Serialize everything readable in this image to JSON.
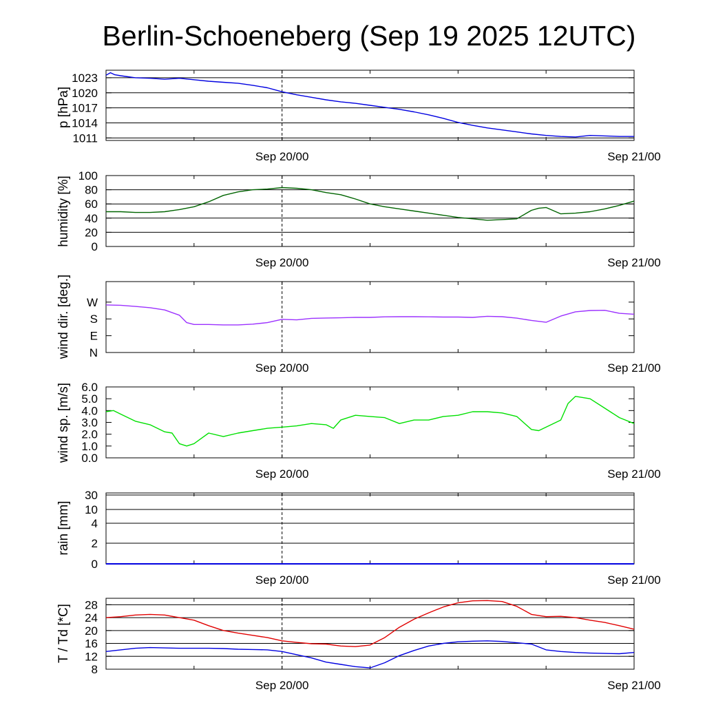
{
  "title": "Berlin-Schoeneberg (Sep 19 2025 12UTC)",
  "x_tick_labels": [
    "Sep 20/00",
    "Sep 21/00"
  ],
  "chart_data": [
    {
      "type": "line",
      "id": "pressure",
      "ylabel": "p [hPa]",
      "ylim": [
        1010.5,
        1024.5
      ],
      "ytick_values": [
        1011,
        1014,
        1017,
        1020,
        1023
      ],
      "ytick_labels": [
        "1011",
        "1014",
        "1017",
        "1020",
        "1023"
      ],
      "x_unit": "hours since Sep 19 12UTC",
      "xlim": [
        0,
        36
      ],
      "color": "#0000e0",
      "series": [
        {
          "x": [
            0,
            0.3,
            0.6,
            1,
            1.5,
            2,
            3,
            4,
            5,
            6,
            7,
            8,
            9,
            10,
            11,
            12,
            13,
            14,
            15,
            16,
            17,
            18,
            19,
            20,
            21,
            22,
            23,
            24,
            25,
            26,
            27,
            28,
            29,
            30,
            31,
            32,
            33,
            34,
            35,
            36
          ],
          "y": [
            1023.5,
            1024.0,
            1023.6,
            1023.4,
            1023.2,
            1023.0,
            1022.9,
            1022.7,
            1022.9,
            1022.6,
            1022.3,
            1022.1,
            1021.9,
            1021.5,
            1021.0,
            1020.2,
            1019.6,
            1019.1,
            1018.6,
            1018.2,
            1017.9,
            1017.5,
            1017.1,
            1016.7,
            1016.2,
            1015.6,
            1014.9,
            1014.1,
            1013.5,
            1013.0,
            1012.6,
            1012.2,
            1011.8,
            1011.5,
            1011.3,
            1011.2,
            1011.5,
            1011.4,
            1011.3,
            1011.3
          ]
        }
      ]
    },
    {
      "type": "line",
      "id": "humidity",
      "ylabel": "humidity [%]",
      "ylim": [
        0,
        100
      ],
      "ytick_values": [
        0,
        20,
        40,
        60,
        80,
        100
      ],
      "ytick_labels": [
        "0",
        "20",
        "40",
        "60",
        "80",
        "100"
      ],
      "xlim": [
        0,
        36
      ],
      "color": "#006400",
      "series": [
        {
          "x": [
            0,
            1,
            2,
            3,
            4,
            5,
            6,
            7,
            8,
            9,
            10,
            11,
            12,
            13,
            14,
            15,
            16,
            17,
            18,
            19,
            20,
            21,
            22,
            23,
            24,
            25,
            26,
            27,
            28,
            29,
            29.5,
            30,
            31,
            32,
            33,
            34,
            35,
            36
          ],
          "y": [
            49,
            49,
            48,
            48,
            49,
            52,
            56,
            63,
            72,
            77,
            80,
            81,
            83,
            82,
            80,
            76,
            73,
            67,
            60,
            56,
            53,
            50,
            47,
            44,
            41,
            39,
            37,
            38,
            39,
            51,
            54,
            55,
            46,
            47,
            49,
            53,
            58,
            64
          ]
        }
      ]
    },
    {
      "type": "line",
      "id": "wind_direction",
      "ylabel": "wind dir. [deg.]",
      "ylim": [
        0,
        380
      ],
      "ytick_values": [
        0,
        90,
        180,
        270
      ],
      "ytick_labels": [
        "N",
        "E",
        "S",
        "W"
      ],
      "xlim": [
        0,
        36
      ],
      "color": "#9b30ff",
      "series": [
        {
          "x": [
            0,
            1,
            2,
            3,
            4,
            5,
            5.5,
            6,
            7,
            8,
            9,
            10,
            11,
            12,
            13,
            14,
            15,
            16,
            17,
            18,
            19,
            20,
            21,
            22,
            23,
            24,
            25,
            26,
            27,
            28,
            29,
            30,
            31,
            32,
            33,
            34,
            35,
            36
          ],
          "y": [
            255,
            253,
            247,
            240,
            228,
            200,
            160,
            150,
            150,
            148,
            148,
            152,
            160,
            178,
            175,
            183,
            185,
            186,
            188,
            188,
            191,
            192,
            192,
            191,
            190,
            190,
            188,
            194,
            192,
            184,
            172,
            162,
            195,
            218,
            225,
            226,
            210,
            205
          ]
        }
      ]
    },
    {
      "type": "line",
      "id": "wind_speed",
      "ylabel": "wind sp. [m/s]",
      "ylim": [
        0,
        6.0
      ],
      "ytick_values": [
        0,
        1,
        2,
        3,
        4,
        5,
        6
      ],
      "ytick_labels": [
        "0.0",
        "1.0",
        "2.0",
        "3.0",
        "4.0",
        "5.0",
        "6.0"
      ],
      "xlim": [
        0,
        36
      ],
      "color": "#00e000",
      "series": [
        {
          "x": [
            0,
            0.5,
            1,
            2,
            3,
            4,
            4.5,
            5,
            5.5,
            6,
            7,
            8,
            9,
            10,
            11,
            12,
            13,
            14,
            15,
            15.5,
            16,
            17,
            18,
            19,
            20,
            21,
            22,
            23,
            24,
            25,
            26,
            27,
            28,
            29,
            29.5,
            30,
            31,
            31.5,
            32,
            33,
            34,
            35,
            36
          ],
          "y": [
            3.9,
            4.0,
            3.7,
            3.1,
            2.8,
            2.2,
            2.1,
            1.2,
            1.0,
            1.2,
            2.1,
            1.8,
            2.1,
            2.3,
            2.5,
            2.6,
            2.7,
            2.9,
            2.8,
            2.5,
            3.2,
            3.6,
            3.5,
            3.4,
            2.9,
            3.2,
            3.2,
            3.5,
            3.6,
            3.9,
            3.9,
            3.8,
            3.5,
            2.4,
            2.3,
            2.6,
            3.2,
            4.6,
            5.2,
            5.0,
            4.2,
            3.4,
            2.9
          ]
        }
      ]
    },
    {
      "type": "line",
      "id": "rain",
      "ylabel": "rain [mm]",
      "ytick_values": [
        0,
        2,
        4,
        10,
        30
      ],
      "ytick_labels": [
        "0",
        "2",
        "4",
        "10",
        "30"
      ],
      "xlim": [
        0,
        36
      ],
      "color": "#0000e0",
      "series": [
        {
          "x": [
            0,
            36
          ],
          "y": [
            0,
            0
          ]
        }
      ]
    },
    {
      "type": "line",
      "id": "temperature",
      "ylabel": "T / Td [*C]",
      "ylim": [
        8,
        30
      ],
      "ytick_values": [
        8,
        12,
        16,
        20,
        24,
        28
      ],
      "ytick_labels": [
        "8",
        "12",
        "16",
        "20",
        "24",
        "28"
      ],
      "xlim": [
        0,
        36
      ],
      "series": [
        {
          "name": "T",
          "color": "#e00000",
          "x": [
            0,
            1,
            2,
            3,
            4,
            5,
            6,
            7,
            8,
            9,
            10,
            11,
            12,
            13,
            14,
            15,
            16,
            17,
            18,
            19,
            20,
            21,
            22,
            23,
            24,
            25,
            26,
            27,
            28,
            29,
            30,
            31,
            32,
            33,
            34,
            35,
            36
          ],
          "y": [
            24.0,
            24.3,
            24.8,
            25.0,
            24.8,
            24.0,
            23.2,
            21.5,
            20.0,
            19.2,
            18.5,
            17.8,
            16.8,
            16.3,
            15.9,
            15.8,
            15.2,
            15.0,
            15.5,
            17.8,
            21.0,
            23.5,
            25.5,
            27.3,
            28.6,
            29.2,
            29.3,
            29.0,
            27.5,
            25.0,
            24.3,
            24.4,
            24.0,
            23.2,
            22.5,
            21.5,
            20.4
          ]
        },
        {
          "name": "Td",
          "color": "#0000e0",
          "x": [
            0,
            1,
            2,
            3,
            4,
            5,
            6,
            7,
            8,
            9,
            10,
            11,
            12,
            13,
            14,
            15,
            16,
            17,
            18,
            19,
            20,
            21,
            22,
            23,
            24,
            25,
            26,
            27,
            28,
            29,
            30,
            31,
            32,
            33,
            34,
            35,
            36
          ],
          "y": [
            13.5,
            14.0,
            14.5,
            14.7,
            14.6,
            14.5,
            14.5,
            14.5,
            14.4,
            14.2,
            14.1,
            14.0,
            13.5,
            12.5,
            11.5,
            10.2,
            9.5,
            8.8,
            8.4,
            10.0,
            12.2,
            13.8,
            15.2,
            16.0,
            16.5,
            16.7,
            16.8,
            16.6,
            16.2,
            15.8,
            14.0,
            13.5,
            13.2,
            13.0,
            12.9,
            12.8,
            13.2
          ]
        }
      ]
    }
  ]
}
